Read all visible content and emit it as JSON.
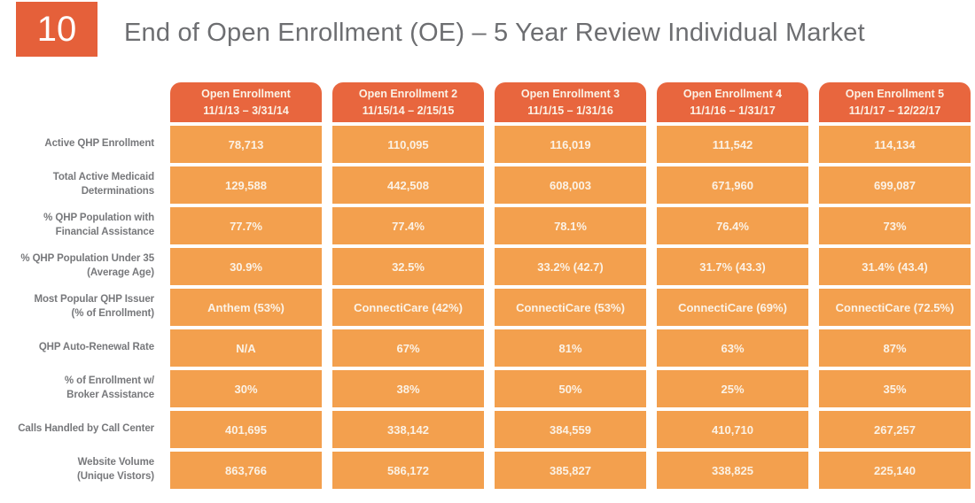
{
  "slide": {
    "number": "10",
    "title": "End of Open Enrollment (OE) – 5 Year Review Individual Market"
  },
  "colors": {
    "badge_orange": "#E5603A",
    "header_orange": "#E8663E",
    "cell_orange": "#F3A04E",
    "cell_text": "#FBF2E6",
    "label_gray": "#77787B",
    "title_gray": "#6D6E71"
  },
  "table": {
    "columns": [
      {
        "label": "Open Enrollment",
        "dates": "11/1/13 – 3/31/14"
      },
      {
        "label": "Open Enrollment 2",
        "dates": "11/15/14 – 2/15/15"
      },
      {
        "label": "Open Enrollment 3",
        "dates": "11/1/15 – 1/31/16"
      },
      {
        "label": "Open Enrollment 4",
        "dates": "11/1/16 – 1/31/17"
      },
      {
        "label": "Open Enrollment 5",
        "dates": "11/1/17 – 12/22/17"
      }
    ],
    "rows": [
      {
        "label_lines": [
          "Active QHP Enrollment"
        ],
        "values": [
          "78,713",
          "110,095",
          "116,019",
          "111,542",
          "114,134"
        ]
      },
      {
        "label_lines": [
          "Total Active Medicaid",
          "Determinations"
        ],
        "values": [
          "129,588",
          "442,508",
          "608,003",
          "671,960",
          "699,087"
        ]
      },
      {
        "label_lines": [
          "% QHP Population with",
          "Financial Assistance"
        ],
        "values": [
          "77.7%",
          "77.4%",
          "78.1%",
          "76.4%",
          "73%"
        ]
      },
      {
        "label_lines": [
          "% QHP Population Under 35",
          "(Average Age)"
        ],
        "values": [
          "30.9%",
          "32.5%",
          "33.2% (42.7)",
          "31.7% (43.3)",
          "31.4% (43.4)"
        ]
      },
      {
        "label_lines": [
          "Most Popular QHP Issuer",
          "(% of Enrollment)"
        ],
        "values": [
          "Anthem (53%)",
          "ConnectiCare (42%)",
          "ConnectiCare (53%)",
          "ConnectiCare (69%)",
          "ConnectiCare (72.5%)"
        ]
      },
      {
        "label_lines": [
          "QHP Auto-Renewal Rate"
        ],
        "values": [
          "N/A",
          "67%",
          "81%",
          "63%",
          "87%"
        ]
      },
      {
        "label_lines": [
          "% of Enrollment w/",
          "Broker Assistance"
        ],
        "values": [
          "30%",
          "38%",
          "50%",
          "25%",
          "35%"
        ]
      },
      {
        "label_lines": [
          "Calls Handled by Call Center"
        ],
        "values": [
          "401,695",
          "338,142",
          "384,559",
          "410,710",
          "267,257"
        ]
      },
      {
        "label_lines": [
          "Website Volume",
          "(Unique Vistors)"
        ],
        "values": [
          "863,766",
          "586,172",
          "385,827",
          "338,825",
          "225,140"
        ]
      }
    ]
  }
}
